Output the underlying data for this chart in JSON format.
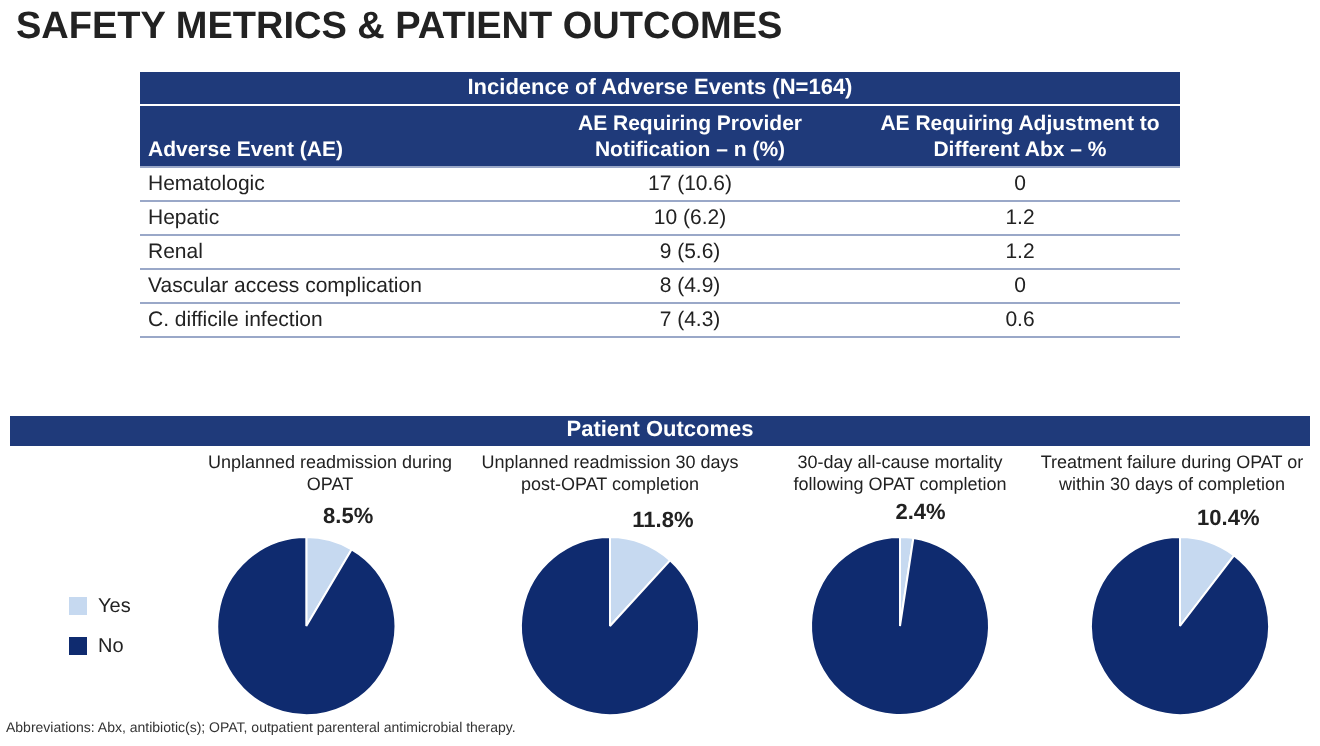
{
  "chart_data": [
    {
      "type": "other",
      "title": "SAFETY METRICS & PATIENT OUTCOMES",
      "subtitle": "Incidence of Adverse Events (N=164)",
      "annotations": [
        "Adverse Event (AE)",
        "AE Requiring Provider Notification – n (%)",
        "AE Requiring Adjustment to Different Abx – %",
        "Hematologic",
        "17 (10.6)",
        "0",
        "Hepatic",
        "10 (6.2)",
        "1.2",
        "Renal",
        "9 (5.6)",
        "1.2",
        "Vascular access complication",
        "8 (4.9)",
        "0",
        "C. difficile infection",
        "7 (4.3)",
        "0.6"
      ]
    },
    {
      "type": "other",
      "title": "Patient Outcomes"
    },
    {
      "type": "pie",
      "title": "Unplanned readmission during OPAT",
      "categories": [
        "Yes",
        "No"
      ],
      "values": [
        8.5,
        91.5
      ],
      "colors": [
        "#c6d9f0",
        "#0f2b6f"
      ],
      "value_labels": [
        "8.5%",
        null
      ],
      "legend": "left"
    },
    {
      "type": "pie",
      "title": "Unplanned readmission 30 days post-OPAT completion",
      "categories": [
        null,
        null
      ],
      "values": [
        11.8,
        88.2
      ],
      "colors": [
        "#c6d9f0",
        "#0f2b6f"
      ],
      "value_labels": [
        "11.8%",
        null
      ]
    },
    {
      "type": "pie",
      "title": "30-day all-cause mortality following OPAT completion",
      "categories": [
        null,
        null
      ],
      "values": [
        2.4,
        97.6
      ],
      "colors": [
        "#c6d9f0",
        "#0f2b6f"
      ],
      "value_labels": [
        "2.4%",
        null
      ]
    },
    {
      "type": "pie",
      "title": "Treatment failure during OPAT or within 30 days of completion",
      "categories": [
        null,
        null
      ],
      "values": [
        10.4,
        89.6
      ],
      "colors": [
        "#c6d9f0",
        "#0f2b6f"
      ],
      "value_labels": [
        "10.4%",
        null
      ],
      "annotations": [
        "Abbreviations: Abx, antibiotic(s); OPAT, outpatient parenteral antimicrobial therapy."
      ]
    }
  ]
}
